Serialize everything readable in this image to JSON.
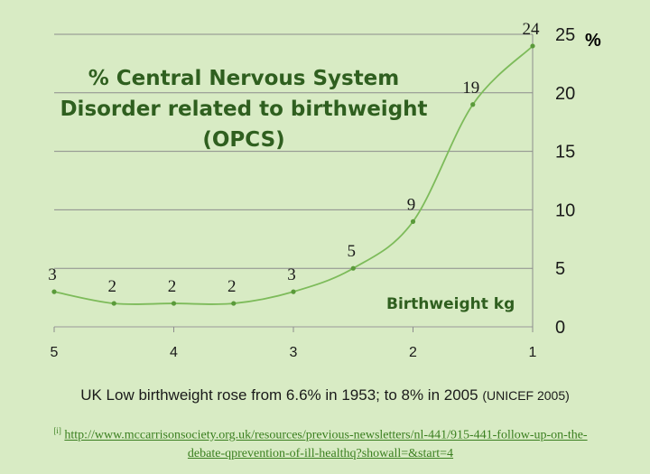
{
  "chart_data": {
    "type": "line",
    "title": "% Central Nervous System Disorder related to birthweight (OPCS)",
    "xlabel": "Birthweight kg",
    "ylabel": "%",
    "x": [
      5,
      4.5,
      4,
      3.5,
      3,
      2.5,
      2,
      1.5,
      1
    ],
    "values": [
      3,
      2,
      2,
      2,
      3,
      5,
      9,
      19,
      24
    ],
    "data_labels": [
      "3",
      "2",
      "2",
      "2",
      "3",
      "5",
      "9",
      "19",
      "24"
    ],
    "xlim": [
      5,
      1
    ],
    "ylim": [
      0,
      25
    ],
    "xticks": [
      5,
      4,
      3,
      2,
      1
    ],
    "xtick_labels": [
      "5",
      "4",
      "3",
      "2",
      "1"
    ],
    "yticks": [
      0,
      5,
      10,
      15,
      20,
      25
    ],
    "ytick_labels": [
      "0",
      "5",
      "10",
      "15",
      "20",
      "25"
    ],
    "y_axis_side": "right",
    "grid": "horizontal",
    "legend": "none",
    "colors": {
      "line": "#7dbb5a",
      "marker": "#5a9a3a",
      "title": "#2f5f1f",
      "background": "#d8ebc4"
    }
  },
  "note": {
    "text": "UK Low birthweight rose from 6.6% in 1953; to 8% in 2005 ",
    "source": "(UNICEF  2005)"
  },
  "reference": {
    "marker": "[i]",
    "link_text": "http://www.mccarrisonsociety.org.uk/resources/previous-newsletters/nl-441/915-441-follow-up-on-the-debate-qprevention-of-ill-healthq?showall=&start=4"
  }
}
